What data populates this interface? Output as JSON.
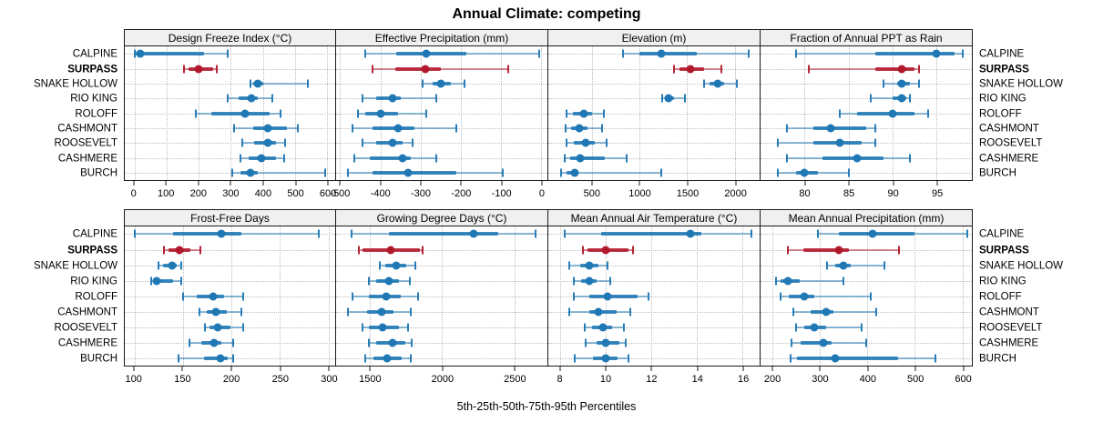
{
  "title": "Annual Climate: competing",
  "caption": "5th-25th-50th-75th-95th Percentiles",
  "highlight_site": "SURPASS",
  "colors": {
    "series_blue": "#1f77b4",
    "highlight_red": "#b2182b",
    "strip_bg": "#f0f0f0",
    "grid_dotted": "#bdbdbd",
    "panel_border": "#1a1a1a"
  },
  "sites": [
    "CALPINE",
    "SURPASS",
    "SNAKE HOLLOW",
    "RIO KING",
    "ROLOFF",
    "CASHMONT",
    "ROOSEVELT",
    "CASHMERE",
    "BURCH"
  ],
  "chart_data": {
    "type": "dotplot-percentile-trellis",
    "percentiles": [
      "5th",
      "25th",
      "50th",
      "75th",
      "95th"
    ],
    "legend_note": "thin line = 5th-95th, thick bar = 25th-75th, dot = 50th percentile",
    "rows_top_to_bottom": [
      "CALPINE",
      "SURPASS",
      "SNAKE HOLLOW",
      "RIO KING",
      "ROLOFF",
      "CASHMONT",
      "ROOSEVELT",
      "CASHMERE",
      "BURCH"
    ],
    "panels": [
      {
        "title": "Design Freeze Index (°C)",
        "xlim": [
          -30,
          625
        ],
        "ticks": [
          0,
          100,
          200,
          300,
          400,
          500,
          600
        ],
        "values": [
          [
            0,
            5,
            18,
            218,
            290
          ],
          [
            155,
            168,
            200,
            245,
            257
          ],
          [
            360,
            370,
            385,
            400,
            540
          ],
          [
            290,
            325,
            365,
            385,
            430
          ],
          [
            190,
            240,
            345,
            420,
            455
          ],
          [
            310,
            370,
            415,
            475,
            510
          ],
          [
            335,
            372,
            415,
            440,
            470
          ],
          [
            330,
            355,
            395,
            440,
            465
          ],
          [
            305,
            330,
            360,
            385,
            595
          ]
        ]
      },
      {
        "title": "Effective Precipitation (mm)",
        "xlim": [
          -510,
          16
        ],
        "ticks": [
          -500,
          -400,
          -300,
          -200,
          -100,
          0
        ],
        "values": [
          [
            -438,
            -360,
            -285,
            -185,
            -5
          ],
          [
            -420,
            -363,
            -287,
            -249,
            -82
          ],
          [
            -295,
            -270,
            -250,
            -225,
            -190
          ],
          [
            -445,
            -410,
            -370,
            -350,
            -260
          ],
          [
            -455,
            -438,
            -400,
            -355,
            -285
          ],
          [
            -470,
            -420,
            -355,
            -315,
            -210
          ],
          [
            -445,
            -410,
            -370,
            -345,
            -320
          ],
          [
            -465,
            -425,
            -345,
            -325,
            -260
          ],
          [
            -480,
            -420,
            -330,
            -210,
            -95
          ]
        ]
      },
      {
        "title": "Elevation (m)",
        "xlim": [
          45,
          2260
        ],
        "ticks": [
          500,
          1000,
          1500,
          2000
        ],
        "values": [
          [
            830,
            1000,
            1230,
            1600,
            2150
          ],
          [
            1360,
            1420,
            1530,
            1680,
            1860
          ],
          [
            1680,
            1735,
            1820,
            1890,
            2025
          ],
          [
            1235,
            1265,
            1305,
            1360,
            1480
          ],
          [
            235,
            300,
            420,
            500,
            630
          ],
          [
            230,
            280,
            365,
            455,
            610
          ],
          [
            235,
            310,
            435,
            530,
            655
          ],
          [
            220,
            270,
            380,
            640,
            870
          ],
          [
            180,
            235,
            320,
            360,
            1225
          ]
        ]
      },
      {
        "title": "Fraction of Annual PPT as Rain",
        "xlim": [
          75,
          99
        ],
        "ticks": [
          80,
          85,
          90,
          95
        ],
        "values": [
          [
            79,
            88,
            95,
            97,
            98
          ],
          [
            80.5,
            88,
            91,
            92.5,
            93
          ],
          [
            89,
            90.5,
            91,
            92,
            93
          ],
          [
            87.5,
            90,
            91,
            91.5,
            92
          ],
          [
            84,
            86,
            90,
            92.5,
            94
          ],
          [
            78,
            81,
            83,
            87,
            88
          ],
          [
            77,
            81,
            84,
            86.5,
            88
          ],
          [
            78,
            82,
            86,
            89,
            92
          ],
          [
            77,
            79,
            80,
            81.5,
            85
          ]
        ]
      },
      {
        "title": "Frost-Free Days",
        "xlim": [
          90,
          307
        ],
        "ticks": [
          100,
          150,
          200,
          250,
          300
        ],
        "values": [
          [
            100,
            140,
            190,
            210,
            290
          ],
          [
            130,
            135,
            146,
            158,
            168
          ],
          [
            125,
            129,
            139,
            144,
            148
          ],
          [
            117,
            119,
            123,
            140,
            148
          ],
          [
            150,
            164,
            181,
            192,
            212
          ],
          [
            167,
            175,
            184,
            195,
            210
          ],
          [
            173,
            177,
            186,
            199,
            212
          ],
          [
            157,
            169,
            182,
            190,
            202
          ],
          [
            145,
            172,
            189,
            196,
            202
          ]
        ]
      },
      {
        "title": "Growing Degree Days (°C)",
        "xlim": [
          1265,
          2730
        ],
        "ticks": [
          1500,
          2000,
          2500
        ],
        "values": [
          [
            1370,
            1630,
            2220,
            2390,
            2650
          ],
          [
            1420,
            1445,
            1645,
            1845,
            1865
          ],
          [
            1565,
            1605,
            1680,
            1750,
            1815
          ],
          [
            1490,
            1540,
            1630,
            1700,
            1775
          ],
          [
            1380,
            1490,
            1610,
            1715,
            1835
          ],
          [
            1345,
            1480,
            1580,
            1665,
            1780
          ],
          [
            1445,
            1490,
            1585,
            1700,
            1765
          ],
          [
            1495,
            1540,
            1655,
            1745,
            1790
          ],
          [
            1470,
            1525,
            1620,
            1720,
            1785
          ]
        ]
      },
      {
        "title": "Mean Annual Air Temperature (°C)",
        "xlim": [
          7.5,
          16.75
        ],
        "ticks": [
          8,
          10,
          12,
          14,
          16
        ],
        "values": [
          [
            8.2,
            9.8,
            13.7,
            14.2,
            16.4
          ],
          [
            9.0,
            9.2,
            10.0,
            11.0,
            11.2
          ],
          [
            8.4,
            8.9,
            9.3,
            9.7,
            10.1
          ],
          [
            8.6,
            8.95,
            9.3,
            9.6,
            10.2
          ],
          [
            8.6,
            9.3,
            10.1,
            11.4,
            11.9
          ],
          [
            8.4,
            9.3,
            9.7,
            10.5,
            11.1
          ],
          [
            9.1,
            9.4,
            9.9,
            10.3,
            10.8
          ],
          [
            9.15,
            9.6,
            10.0,
            10.6,
            10.9
          ],
          [
            8.65,
            9.45,
            10.0,
            10.55,
            11.0
          ]
        ]
      },
      {
        "title": "Mean Annual Precipitation (mm)",
        "xlim": [
          175,
          620
        ],
        "ticks": [
          200,
          300,
          400,
          500,
          600
        ],
        "values": [
          [
            295,
            340,
            410,
            500,
            610
          ],
          [
            232,
            265,
            340,
            362,
            467
          ],
          [
            315,
            333,
            350,
            365,
            436
          ],
          [
            208,
            218,
            232,
            258,
            350
          ],
          [
            217,
            235,
            268,
            289,
            408
          ],
          [
            245,
            280,
            313,
            329,
            418
          ],
          [
            249,
            268,
            288,
            313,
            387
          ],
          [
            241,
            260,
            307,
            325,
            397
          ],
          [
            239,
            252,
            333,
            464,
            544
          ]
        ]
      }
    ]
  }
}
